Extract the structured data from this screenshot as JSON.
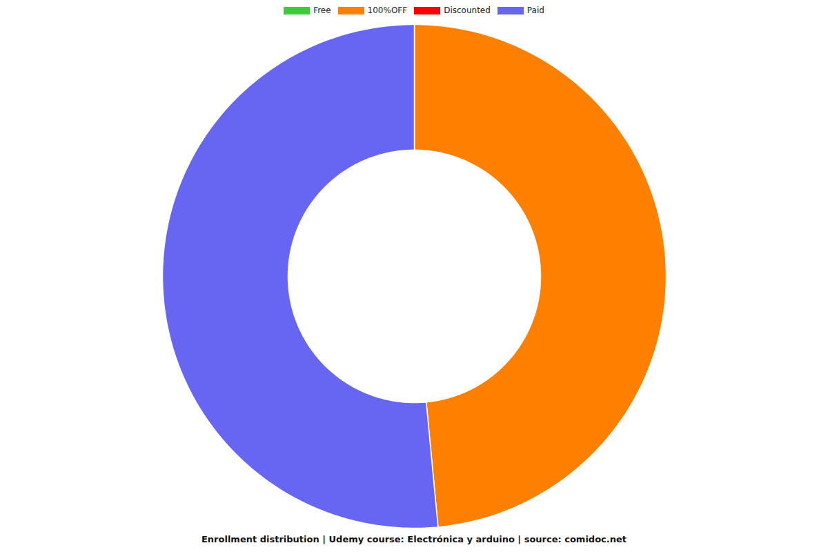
{
  "chart_data": {
    "type": "donut",
    "title": "Enrollment distribution | Udemy course: Electrónica y arduino | source: comidoc.net",
    "categories": [
      "Free",
      "100%OFF",
      "Discounted",
      "Paid"
    ],
    "values": [
      0,
      48.5,
      0,
      51.5
    ],
    "colors": [
      "#3ec93e",
      "#ff8000",
      "#ff0000",
      "#6666f2"
    ],
    "legend": "top"
  }
}
